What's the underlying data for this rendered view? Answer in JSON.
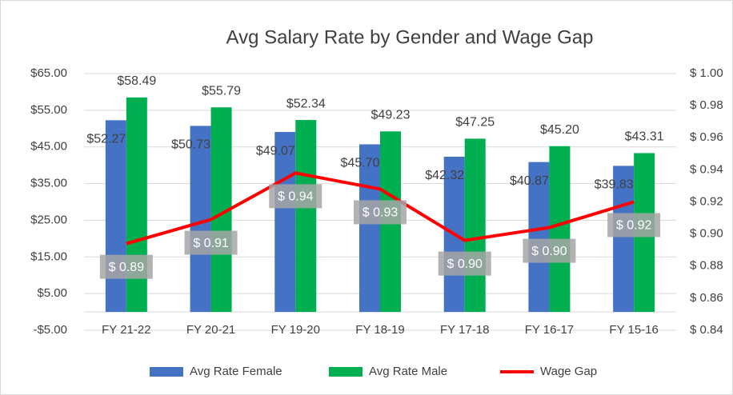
{
  "chart_data": {
    "type": "combo",
    "title": "Avg Salary Rate by Gender and Wage Gap",
    "categories": [
      "FY 21-22",
      "FY 20-21",
      "FY 19-20",
      "FY 18-19",
      "FY 17-18",
      "FY 16-17",
      "FY 15-16"
    ],
    "series": [
      {
        "name": "Avg Rate Female",
        "type": "bar",
        "color": "#4472c4",
        "values": [
          52.27,
          50.73,
          49.07,
          45.7,
          42.32,
          40.87,
          39.83
        ],
        "value_labels": [
          "$52.27",
          "$50.73",
          "$49.07",
          "$45.70",
          "$42.32",
          "$40.87",
          "$39.83"
        ]
      },
      {
        "name": "Avg Rate Male",
        "type": "bar",
        "color": "#00b050",
        "values": [
          58.49,
          55.79,
          52.34,
          49.23,
          47.25,
          45.2,
          43.31
        ],
        "value_labels": [
          "$58.49",
          "$55.79",
          "$52.34",
          "$49.23",
          "$47.25",
          "$45.20",
          "$43.31"
        ]
      },
      {
        "name": "Wage Gap",
        "type": "line",
        "axis": "y2",
        "color": "#ff0000",
        "values": [
          0.894,
          0.909,
          0.938,
          0.928,
          0.896,
          0.904,
          0.92
        ],
        "value_labels": [
          "$ 0.89",
          "$ 0.91",
          "$ 0.94",
          "$ 0.93",
          "$ 0.90",
          "$ 0.90",
          "$ 0.92"
        ]
      }
    ],
    "ylim": [
      -5,
      65
    ],
    "yticks": [
      {
        "value": -5,
        "label": "-$5.00"
      },
      {
        "value": 5,
        "label": "$5.00"
      },
      {
        "value": 15,
        "label": "$15.00"
      },
      {
        "value": 25,
        "label": "$25.00"
      },
      {
        "value": 35,
        "label": "$35.00"
      },
      {
        "value": 45,
        "label": "$45.00"
      },
      {
        "value": 55,
        "label": "$55.00"
      },
      {
        "value": 65,
        "label": "$65.00"
      }
    ],
    "y2lim": [
      0.84,
      1.0
    ],
    "y2ticks": [
      {
        "value": 0.84,
        "label": "$ 0.84"
      },
      {
        "value": 0.86,
        "label": "$ 0.86"
      },
      {
        "value": 0.88,
        "label": "$ 0.88"
      },
      {
        "value": 0.9,
        "label": "$ 0.90"
      },
      {
        "value": 0.92,
        "label": "$ 0.92"
      },
      {
        "value": 0.94,
        "label": "$ 0.94"
      },
      {
        "value": 0.96,
        "label": "$ 0.96"
      },
      {
        "value": 0.98,
        "label": "$ 0.98"
      },
      {
        "value": 1.0,
        "label": "$ 1.00"
      }
    ],
    "legend": "bottom"
  }
}
